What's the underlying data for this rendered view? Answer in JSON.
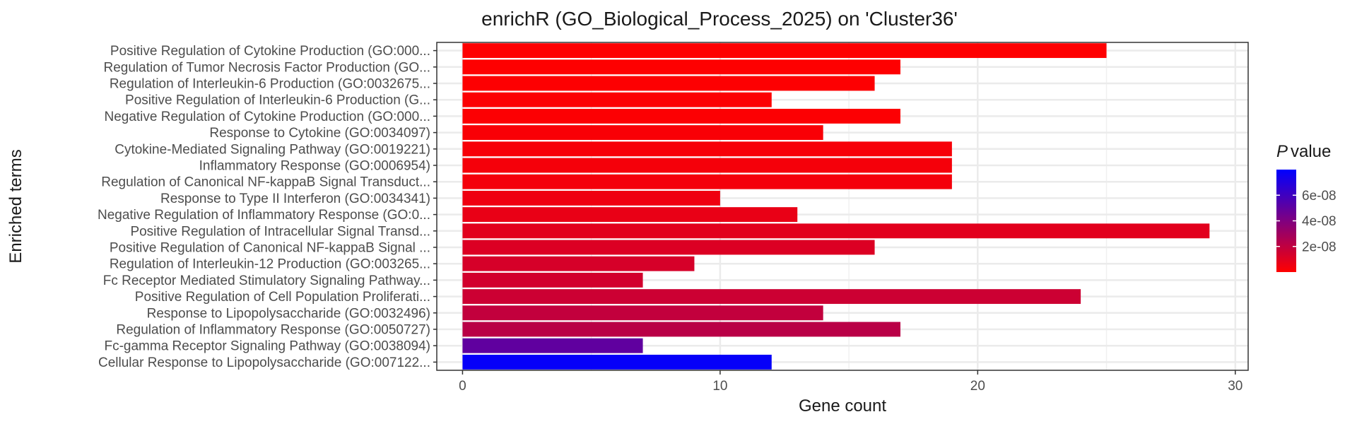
{
  "chart_data": {
    "type": "bar",
    "orientation": "horizontal",
    "title": "enrichR (GO_Biological_Process_2025) on 'Cluster36'",
    "xlabel": "Gene count",
    "ylabel": "Enriched terms",
    "xlim": [
      -1,
      30.5
    ],
    "xticks": [
      0,
      10,
      20,
      30
    ],
    "grid": true,
    "categories": [
      "Positive Regulation of Cytokine Production (GO:000...",
      "Regulation of Tumor Necrosis Factor Production (GO...",
      "Regulation of Interleukin-6 Production (GO:0032675...",
      "Positive Regulation of Interleukin-6 Production (G...",
      "Negative Regulation of Cytokine Production (GO:000...",
      "Response to Cytokine (GO:0034097)",
      "Cytokine-Mediated Signaling Pathway (GO:0019221)",
      "Inflammatory Response (GO:0006954)",
      "Regulation of Canonical NF-kappaB Signal Transduct...",
      "Response to Type II Interferon (GO:0034341)",
      "Negative Regulation of Inflammatory Response (GO:0...",
      "Positive Regulation of Intracellular Signal Transd...",
      "Positive Regulation of Canonical NF-kappaB Signal ...",
      "Regulation of Interleukin-12 Production (GO:003265...",
      "Fc Receptor Mediated Stimulatory Signaling Pathway...",
      "Positive Regulation of Cell Population Proliferati...",
      "Response to Lipopolysaccharide (GO:0032496)",
      "Regulation of Inflammatory Response (GO:0050727)",
      "Fc-gamma Receptor Signaling Pathway (GO:0038094)",
      "Cellular Response to Lipopolysaccharide (GO:007122..."
    ],
    "values": [
      25,
      17,
      16,
      12,
      17,
      14,
      19,
      19,
      19,
      10,
      13,
      29,
      16,
      9,
      7,
      24,
      14,
      17,
      7,
      12
    ],
    "p_values": [
      2e-10,
      3e-10,
      5e-10,
      8e-10,
      1e-09,
      2e-09,
      2.5e-09,
      3e-09,
      3.5e-09,
      5e-09,
      7e-09,
      9e-09,
      1.1e-08,
      1.3e-08,
      1.4e-08,
      1.6e-08,
      1.9e-08,
      2.2e-08,
      5e-08,
      7.8e-08
    ],
    "legend": {
      "title_italic": "P",
      "title_rest": " value",
      "ticks": [
        {
          "label": "6e-08",
          "value": 6e-08
        },
        {
          "label": "4e-08",
          "value": 4e-08
        },
        {
          "label": "2e-08",
          "value": 2e-08
        }
      ],
      "range": [
        0,
        8e-08
      ],
      "low_color": "#ff0000",
      "high_color": "#0000ff",
      "placement": "right"
    }
  }
}
